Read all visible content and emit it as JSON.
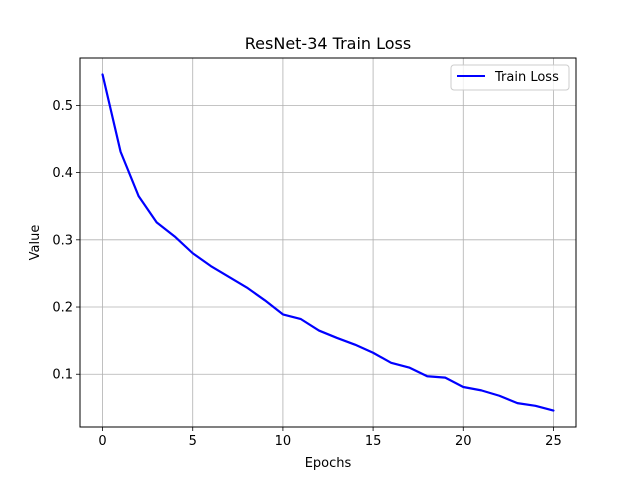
{
  "chart_data": {
    "type": "line",
    "title": "ResNet-34 Train Loss",
    "xlabel": "Epochs",
    "ylabel": "Value",
    "xlim": [
      -1.25,
      26.25
    ],
    "ylim": [
      0.0215,
      0.5705
    ],
    "xticks": [
      0,
      5,
      10,
      15,
      20,
      25
    ],
    "xtick_labels": [
      "0",
      "5",
      "10",
      "15",
      "20",
      "25"
    ],
    "yticks": [
      0.1,
      0.2,
      0.3,
      0.4,
      0.5
    ],
    "ytick_labels": [
      "0.1",
      "0.2",
      "0.3",
      "0.4",
      "0.5"
    ],
    "grid": true,
    "legend_position": "top-right",
    "series": [
      {
        "name": "Train Loss",
        "color": "#0000ff",
        "x": [
          0,
          1,
          2,
          3,
          4,
          5,
          6,
          7,
          8,
          9,
          10,
          11,
          12,
          13,
          14,
          15,
          16,
          17,
          18,
          19,
          20,
          21,
          22,
          23,
          24,
          25
        ],
        "values": [
          0.546,
          0.431,
          0.365,
          0.326,
          0.305,
          0.28,
          0.261,
          0.245,
          0.229,
          0.21,
          0.189,
          0.182,
          0.165,
          0.154,
          0.144,
          0.132,
          0.117,
          0.11,
          0.097,
          0.095,
          0.081,
          0.076,
          0.068,
          0.057,
          0.053,
          0.046
        ]
      }
    ]
  }
}
